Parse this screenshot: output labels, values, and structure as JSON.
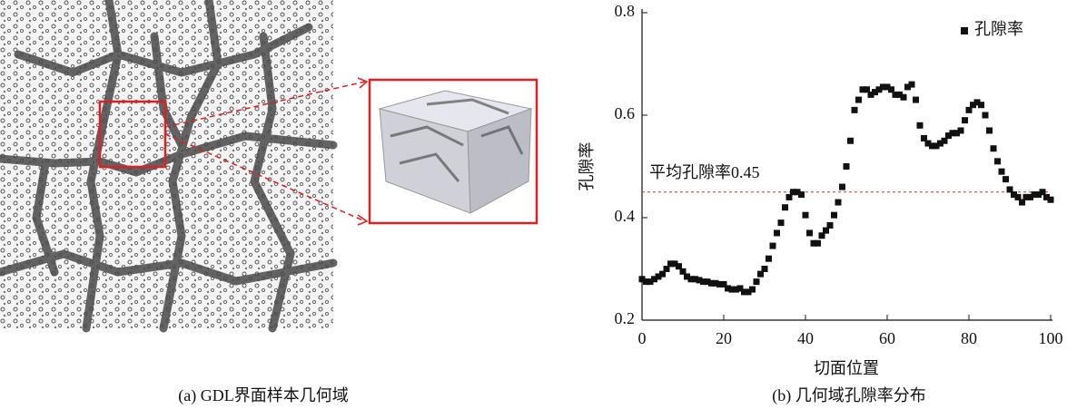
{
  "captions": [
    "(a) GDL界面样本几何域",
    "(b) 几何域孔隙率分布"
  ],
  "chart_data": {
    "type": "scatter",
    "xlabel": "切面位置",
    "ylabel": "孔隙率",
    "xlim": [
      0,
      100
    ],
    "xticks": [
      0,
      20,
      40,
      60,
      80,
      100
    ],
    "ylim": [
      0.2,
      0.8
    ],
    "yticks": [
      0.2,
      0.4,
      0.6,
      0.8
    ],
    "legend": "top-right",
    "reference_line": {
      "value": 0.45,
      "label": "平均孔隙率0.45",
      "color": "#d03030"
    },
    "series": [
      {
        "name": "孔隙率",
        "color": "#111111",
        "x": [
          0,
          1,
          2,
          3,
          4,
          5,
          6,
          7,
          8,
          9,
          10,
          11,
          12,
          13,
          14,
          15,
          16,
          17,
          18,
          19,
          20,
          21,
          22,
          23,
          24,
          25,
          26,
          27,
          28,
          29,
          30,
          31,
          32,
          33,
          34,
          35,
          36,
          37,
          38,
          39,
          40,
          41,
          42,
          43,
          44,
          45,
          46,
          47,
          48,
          49,
          50,
          51,
          52,
          53,
          54,
          55,
          56,
          57,
          58,
          59,
          60,
          61,
          62,
          63,
          64,
          65,
          66,
          67,
          68,
          69,
          70,
          71,
          72,
          73,
          74,
          75,
          76,
          77,
          78,
          79,
          80,
          81,
          82,
          83,
          84,
          85,
          86,
          87,
          88,
          89,
          90,
          91,
          92,
          93,
          94,
          95,
          96,
          97,
          98,
          99,
          100
        ],
        "values": [
          0.28,
          0.275,
          0.275,
          0.28,
          0.285,
          0.29,
          0.3,
          0.31,
          0.31,
          0.305,
          0.295,
          0.285,
          0.28,
          0.28,
          0.278,
          0.275,
          0.275,
          0.272,
          0.272,
          0.27,
          0.27,
          0.262,
          0.26,
          0.26,
          0.262,
          0.255,
          0.255,
          0.26,
          0.275,
          0.29,
          0.3,
          0.32,
          0.345,
          0.37,
          0.39,
          0.42,
          0.44,
          0.45,
          0.45,
          0.445,
          0.405,
          0.37,
          0.35,
          0.35,
          0.365,
          0.375,
          0.385,
          0.405,
          0.43,
          0.46,
          0.5,
          0.55,
          0.61,
          0.63,
          0.65,
          0.65,
          0.64,
          0.645,
          0.65,
          0.655,
          0.655,
          0.65,
          0.64,
          0.64,
          0.635,
          0.655,
          0.66,
          0.63,
          0.58,
          0.555,
          0.545,
          0.54,
          0.54,
          0.545,
          0.55,
          0.56,
          0.565,
          0.565,
          0.57,
          0.59,
          0.61,
          0.62,
          0.625,
          0.62,
          0.6,
          0.57,
          0.535,
          0.51,
          0.49,
          0.475,
          0.455,
          0.445,
          0.44,
          0.43,
          0.44,
          0.44,
          0.445,
          0.445,
          0.45,
          0.44,
          0.435
        ]
      }
    ]
  }
}
